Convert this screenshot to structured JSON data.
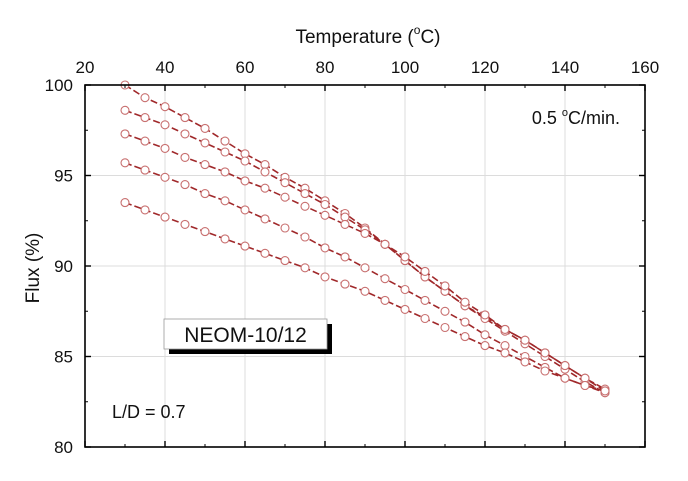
{
  "chart_data": {
    "type": "line",
    "xlabel": "Temperature (",
    "xlabel_sup": "o",
    "xlabel_end": "C)",
    "ylabel": "Flux (%)",
    "xlim": [
      20,
      160
    ],
    "ylim": [
      80,
      100
    ],
    "x_ticks": [
      "20",
      "40",
      "60",
      "80",
      "100",
      "120",
      "140",
      "160"
    ],
    "y_ticks": [
      "80",
      "85",
      "90",
      "95",
      "100"
    ],
    "x_axis_position": "top",
    "grid": true,
    "annotations": {
      "rate_prefix": "0.5 ",
      "rate_sup": "o",
      "rate_suffix": "C/min.",
      "sample_label": "NEOM-10/12",
      "ratio_label": "L/D = 0.7"
    },
    "line_color": "#a0282a",
    "marker_color": "#c87070",
    "series": [
      {
        "values": [
          [
            30,
            100.0
          ],
          [
            35,
            99.3
          ],
          [
            40,
            98.8
          ],
          [
            45,
            98.2
          ],
          [
            50,
            97.6
          ],
          [
            55,
            96.9
          ],
          [
            60,
            96.2
          ],
          [
            65,
            95.6
          ],
          [
            70,
            94.9
          ],
          [
            75,
            94.3
          ],
          [
            80,
            93.6
          ],
          [
            85,
            92.9
          ],
          [
            90,
            92.1
          ],
          [
            95,
            91.2
          ],
          [
            100,
            90.3
          ],
          [
            105,
            89.4
          ],
          [
            110,
            88.6
          ],
          [
            115,
            87.8
          ],
          [
            120,
            87.2
          ],
          [
            125,
            86.5
          ],
          [
            130,
            85.9
          ],
          [
            135,
            85.2
          ],
          [
            140,
            84.5
          ],
          [
            145,
            83.8
          ],
          [
            150,
            83.2
          ]
        ]
      },
      {
        "values": [
          [
            30,
            98.6
          ],
          [
            35,
            98.2
          ],
          [
            40,
            97.8
          ],
          [
            45,
            97.3
          ],
          [
            50,
            96.8
          ],
          [
            55,
            96.3
          ],
          [
            60,
            95.8
          ],
          [
            65,
            95.2
          ],
          [
            70,
            94.6
          ],
          [
            75,
            94.0
          ],
          [
            80,
            93.4
          ],
          [
            85,
            92.7
          ],
          [
            90,
            92.0
          ],
          [
            95,
            91.2
          ],
          [
            100,
            90.3
          ],
          [
            105,
            89.4
          ],
          [
            110,
            88.6
          ],
          [
            115,
            87.8
          ],
          [
            120,
            87.1
          ],
          [
            125,
            86.4
          ],
          [
            130,
            85.7
          ],
          [
            135,
            85.0
          ],
          [
            140,
            84.3
          ],
          [
            145,
            83.6
          ],
          [
            150,
            83.0
          ]
        ]
      },
      {
        "values": [
          [
            30,
            97.3
          ],
          [
            35,
            96.9
          ],
          [
            40,
            96.5
          ],
          [
            45,
            96.0
          ],
          [
            50,
            95.6
          ],
          [
            55,
            95.2
          ],
          [
            60,
            94.7
          ],
          [
            65,
            94.3
          ],
          [
            70,
            93.8
          ],
          [
            75,
            93.3
          ],
          [
            80,
            92.8
          ],
          [
            85,
            92.3
          ],
          [
            90,
            91.8
          ],
          [
            95,
            91.2
          ],
          [
            100,
            90.5
          ],
          [
            105,
            89.7
          ],
          [
            110,
            88.9
          ],
          [
            115,
            88.0
          ],
          [
            120,
            87.3
          ],
          [
            125,
            86.5
          ],
          [
            130,
            85.9
          ],
          [
            135,
            85.2
          ],
          [
            140,
            84.5
          ],
          [
            145,
            83.8
          ],
          [
            150,
            83.1
          ]
        ]
      },
      {
        "values": [
          [
            30,
            95.7
          ],
          [
            35,
            95.3
          ],
          [
            40,
            94.9
          ],
          [
            45,
            94.5
          ],
          [
            50,
            94.0
          ],
          [
            55,
            93.6
          ],
          [
            60,
            93.1
          ],
          [
            65,
            92.6
          ],
          [
            70,
            92.1
          ],
          [
            75,
            91.6
          ],
          [
            80,
            91.0
          ],
          [
            85,
            90.5
          ],
          [
            90,
            89.9
          ],
          [
            95,
            89.3
          ],
          [
            100,
            88.7
          ],
          [
            105,
            88.1
          ],
          [
            110,
            87.5
          ],
          [
            115,
            86.9
          ],
          [
            120,
            86.2
          ],
          [
            125,
            85.6
          ],
          [
            130,
            85.0
          ],
          [
            135,
            84.4
          ],
          [
            140,
            83.8
          ],
          [
            145,
            83.4
          ],
          [
            150,
            83.0
          ]
        ]
      },
      {
        "values": [
          [
            30,
            93.5
          ],
          [
            35,
            93.1
          ],
          [
            40,
            92.7
          ],
          [
            45,
            92.3
          ],
          [
            50,
            91.9
          ],
          [
            55,
            91.5
          ],
          [
            60,
            91.1
          ],
          [
            65,
            90.7
          ],
          [
            70,
            90.3
          ],
          [
            75,
            89.9
          ],
          [
            80,
            89.4
          ],
          [
            85,
            89.0
          ],
          [
            90,
            88.6
          ],
          [
            95,
            88.1
          ],
          [
            100,
            87.6
          ],
          [
            105,
            87.1
          ],
          [
            110,
            86.6
          ],
          [
            115,
            86.1
          ],
          [
            120,
            85.6
          ],
          [
            125,
            85.2
          ],
          [
            130,
            84.7
          ],
          [
            135,
            84.2
          ],
          [
            140,
            83.8
          ],
          [
            145,
            83.4
          ],
          [
            150,
            83.1
          ]
        ]
      }
    ]
  }
}
